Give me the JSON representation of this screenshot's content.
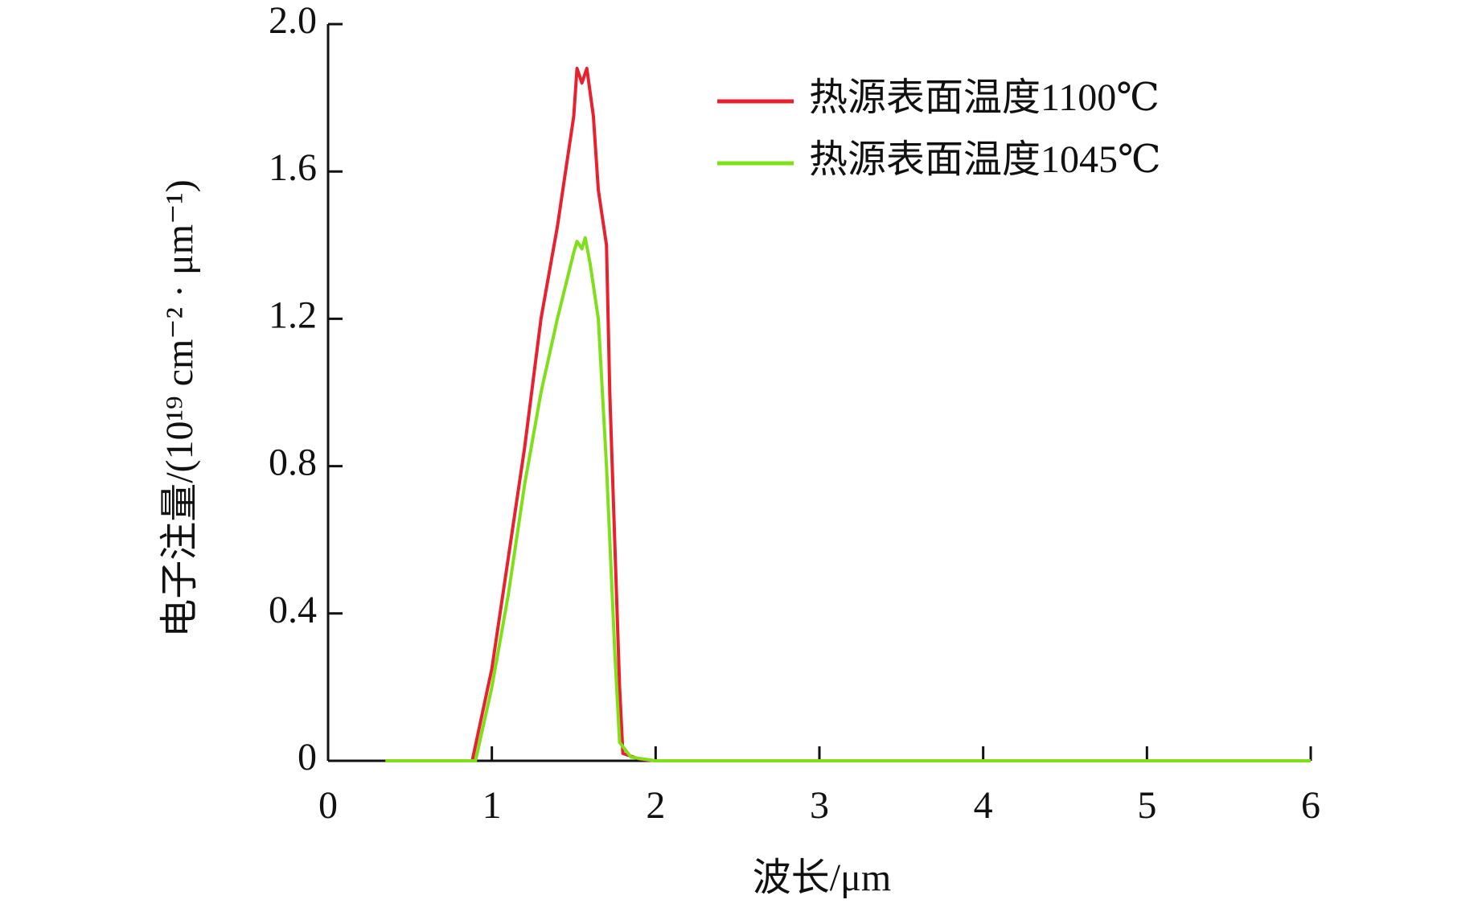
{
  "chart_data": {
    "type": "line",
    "x_label": "波长/μm",
    "y_label": "电子注量/(10¹⁹ cm⁻² · μm⁻¹)",
    "xlim": [
      0,
      6
    ],
    "xticks": [
      0,
      1,
      2,
      3,
      4,
      5,
      6
    ],
    "ylim": [
      0,
      2.0
    ],
    "yticks": [
      0,
      0.4,
      0.8,
      1.2,
      1.6,
      {
        "value": 2.0,
        "label": "2.0"
      }
    ],
    "grid": false,
    "legend": "upper right",
    "series": [
      {
        "name": "热源表面温度1100℃",
        "color": "#e8212f",
        "x": [
          0.35,
          0.88,
          1.0,
          1.1,
          1.2,
          1.3,
          1.4,
          1.5,
          1.52,
          1.55,
          1.58,
          1.62,
          1.65,
          1.7,
          1.72,
          1.75,
          1.78,
          1.8,
          1.9,
          2.0,
          6.0
        ],
        "values": [
          0,
          0,
          0.25,
          0.55,
          0.85,
          1.2,
          1.45,
          1.75,
          1.88,
          1.84,
          1.88,
          1.75,
          1.55,
          1.4,
          1.0,
          0.6,
          0.2,
          0.02,
          0.005,
          0,
          0
        ]
      },
      {
        "name": "热源表面温度1045℃",
        "color": "#7fe01a",
        "x": [
          0.35,
          0.9,
          1.0,
          1.1,
          1.2,
          1.3,
          1.4,
          1.5,
          1.52,
          1.55,
          1.57,
          1.6,
          1.65,
          1.7,
          1.75,
          1.78,
          1.85,
          2.0,
          6.0
        ],
        "values": [
          0,
          0,
          0.2,
          0.45,
          0.75,
          1.0,
          1.2,
          1.38,
          1.41,
          1.39,
          1.42,
          1.35,
          1.2,
          0.8,
          0.3,
          0.05,
          0.01,
          0,
          0
        ]
      }
    ]
  }
}
